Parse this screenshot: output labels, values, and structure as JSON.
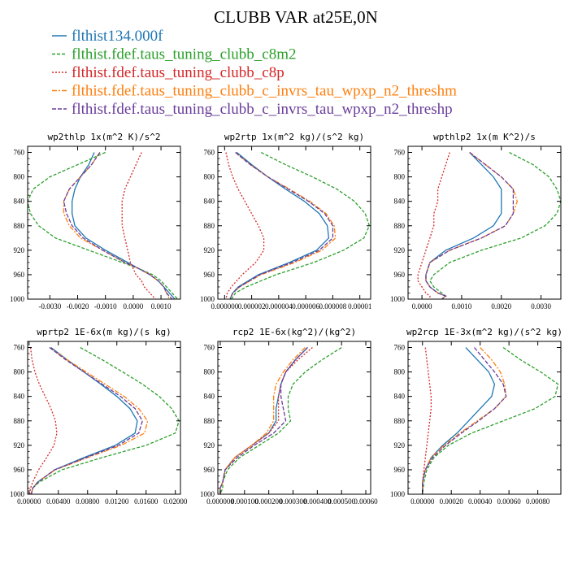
{
  "figure": {
    "title": "CLUBB VAR at25E,0N"
  },
  "colors": {
    "flthist134.000f": "#1f77b4",
    "c8m2": "#2ca02c",
    "c8p": "#d62728",
    "threshm": "#ff7f0e",
    "threshp": "#6a3d9a"
  },
  "legend": [
    {
      "label": "flthist134.000f",
      "color": "#1f77b4",
      "dash": ""
    },
    {
      "label": "flthist.fdef.taus_tuning_clubb_c8m2",
      "color": "#2ca02c",
      "dash": "4,2"
    },
    {
      "label": "flthist.fdef.taus_tuning_clubb_c8p",
      "color": "#d62728",
      "dash": "2,2"
    },
    {
      "label": "flthist.fdef.taus_tuning_clubb_c_invrs_tau_wpxp_n2_threshm",
      "color": "#ff7f0e",
      "dash": "6,2,2,2"
    },
    {
      "label": "flthist.fdef.taus_tuning_clubb_c_invrs_tau_wpxp_n2_threshp",
      "color": "#6a3d9a",
      "dash": "5,2"
    }
  ],
  "chart_data": [
    {
      "type": "line",
      "title": "wp2thlp  1x(m^2 K)/s^2",
      "xlim": [
        -0.0038,
        0.0017
      ],
      "ylim": [
        1000,
        750
      ],
      "xticks": [
        "-0.0030",
        "-0.0020",
        "-0.0010",
        "0.0000",
        "0.0010"
      ],
      "xtick_values": [
        -0.003,
        -0.002,
        -0.001,
        0.0,
        0.001
      ],
      "yticks": [
        "760",
        "800",
        "840",
        "880",
        "920",
        "960",
        "1000"
      ],
      "ytick_values": [
        760,
        800,
        840,
        880,
        920,
        960,
        1000
      ],
      "y": [
        760,
        780,
        800,
        820,
        840,
        860,
        880,
        900,
        920,
        940,
        950,
        960,
        970,
        980,
        990,
        1000
      ],
      "series": [
        {
          "key": "flthist134.000f",
          "x": [
            -0.0014,
            -0.0016,
            -0.0019,
            -0.0021,
            -0.0022,
            -0.0022,
            -0.0021,
            -0.0017,
            -0.001,
            -0.0002,
            0.0002,
            0.0006,
            0.0009,
            0.0011,
            0.0013,
            0.0015
          ]
        },
        {
          "key": "c8m2",
          "x": [
            -0.001,
            -0.002,
            -0.003,
            -0.0036,
            -0.0038,
            -0.0037,
            -0.0034,
            -0.0028,
            -0.0016,
            -0.0004,
            0.0002,
            0.0007,
            0.001,
            0.0012,
            0.0014,
            0.0016
          ]
        },
        {
          "key": "c8p",
          "x": [
            0.0003,
            0.0001,
            -0.0001,
            -0.0003,
            -0.0004,
            -0.0004,
            -0.0004,
            -0.0003,
            -0.0002,
            -0.0001,
            0.0,
            0.0001,
            0.0003,
            0.0004,
            0.0006,
            0.0008
          ]
        },
        {
          "key": "threshm",
          "x": [
            -0.0012,
            -0.0015,
            -0.0019,
            -0.0023,
            -0.0025,
            -0.0025,
            -0.0023,
            -0.0019,
            -0.0011,
            -0.0003,
            0.0002,
            0.0006,
            0.0009,
            0.0011,
            0.0012,
            0.0013
          ]
        },
        {
          "key": "threshp",
          "x": [
            -0.0012,
            -0.0015,
            -0.0019,
            -0.0023,
            -0.0025,
            -0.0024,
            -0.0022,
            -0.0018,
            -0.0011,
            -0.0003,
            0.0002,
            0.0006,
            0.0009,
            0.0011,
            0.0012,
            0.0014
          ]
        }
      ]
    },
    {
      "type": "line",
      "title": "wp2rtp  1x(m^2 kg)/(s^2 kg)",
      "xlim": [
        -5e-07,
        1.08e-05
      ],
      "ylim": [
        1000,
        750
      ],
      "xticks": [
        "0.000000",
        "0.000002",
        "0.000004",
        "0.000006",
        "0.000008",
        "0.00001"
      ],
      "xtick_values": [
        0.0,
        2e-06,
        4e-06,
        6e-06,
        8e-06,
        1e-05
      ],
      "yticks": [
        "760",
        "800",
        "840",
        "880",
        "920",
        "960",
        "1000"
      ],
      "ytick_values": [
        760,
        800,
        840,
        880,
        920,
        960,
        1000
      ],
      "y": [
        760,
        780,
        800,
        820,
        840,
        860,
        880,
        900,
        920,
        940,
        960,
        980,
        990,
        1000
      ],
      "series": [
        {
          "key": "flthist134.000f",
          "x": [
            9e-07,
            2e-06,
            3.2e-06,
            4.5e-06,
            5.9e-06,
            7e-06,
            7.6e-06,
            7.7e-06,
            6.8e-06,
            4.8e-06,
            2.5e-06,
            1e-06,
            6e-07,
            4e-07
          ]
        },
        {
          "key": "c8m2",
          "x": [
            2.7e-06,
            4.5e-06,
            6.5e-06,
            8.3e-06,
            9.6e-06,
            1.04e-05,
            1.07e-05,
            1.03e-05,
            8.8e-06,
            6.6e-06,
            3.8e-06,
            1.6e-06,
            8e-07,
            5e-07
          ]
        },
        {
          "key": "c8p",
          "x": [
            1e-07,
            3e-07,
            6e-07,
            1e-06,
            1.5e-06,
            2e-06,
            2.5e-06,
            2.9e-06,
            2.9e-06,
            2.3e-06,
            1.3e-06,
            5e-07,
            2e-07,
            1e-07
          ]
        },
        {
          "key": "threshm",
          "x": [
            8e-07,
            1.9e-06,
            3.2e-06,
            4.8e-06,
            6.3e-06,
            7.5e-06,
            8.1e-06,
            8.2e-06,
            7.2e-06,
            5.2e-06,
            2.7e-06,
            1.1e-06,
            6e-07,
            4e-07
          ]
        },
        {
          "key": "threshp",
          "x": [
            8e-07,
            1.9e-06,
            3.2e-06,
            4.7e-06,
            6.2e-06,
            7.4e-06,
            8e-06,
            8e-06,
            7e-06,
            5e-06,
            2.6e-06,
            1.1e-06,
            6e-07,
            4e-07
          ]
        }
      ]
    },
    {
      "type": "line",
      "title": "wpthlp2  1x(m K^2)/s",
      "xlim": [
        -0.00035,
        0.0035
      ],
      "ylim": [
        1000,
        750
      ],
      "xticks": [
        "0.0000",
        "0.0010",
        "0.0020",
        "0.0030"
      ],
      "xtick_values": [
        0.0,
        0.001,
        0.002,
        0.003
      ],
      "yticks": [
        "760",
        "800",
        "840",
        "880",
        "920",
        "960",
        "1000"
      ],
      "ytick_values": [
        760,
        800,
        840,
        880,
        920,
        960,
        1000
      ],
      "y": [
        760,
        780,
        800,
        820,
        840,
        860,
        880,
        900,
        920,
        940,
        960,
        970,
        980,
        990,
        995,
        1000
      ],
      "series": [
        {
          "key": "flthist134.000f",
          "x": [
            0.0012,
            0.0015,
            0.0018,
            0.002,
            0.002,
            0.002,
            0.0018,
            0.0013,
            0.0006,
            0.0002,
            0.0001,
            0.0001,
            0.0002,
            0.0004,
            0.0006,
            0.0005
          ]
        },
        {
          "key": "c8m2",
          "x": [
            0.0022,
            0.0028,
            0.0032,
            0.0034,
            0.0035,
            0.0034,
            0.0031,
            0.0025,
            0.0015,
            0.0007,
            0.0003,
            0.0002,
            0.0003,
            0.0005,
            0.0006,
            0.0005
          ]
        },
        {
          "key": "c8p",
          "x": [
            0.0007,
            0.0006,
            0.0005,
            0.0004,
            0.0004,
            0.0003,
            0.0003,
            0.0002,
            0.0001,
            0.0,
            -0.0001,
            -0.0001,
            0.0,
            0.0001,
            0.0002,
            0.0002
          ]
        },
        {
          "key": "threshm",
          "x": [
            0.0012,
            0.0016,
            0.002,
            0.0023,
            0.0024,
            0.0023,
            0.0021,
            0.0015,
            0.0007,
            0.0002,
            0.0001,
            0.0001,
            0.0002,
            0.0004,
            0.0006,
            0.0005
          ]
        },
        {
          "key": "threshp",
          "x": [
            0.0012,
            0.0016,
            0.002,
            0.0023,
            0.0023,
            0.0023,
            0.0021,
            0.0015,
            0.0007,
            0.0002,
            0.0001,
            0.0001,
            0.0002,
            0.0004,
            0.0006,
            0.0005
          ]
        }
      ]
    },
    {
      "type": "line",
      "title": "wprtp2  1E-6x(m kg)/(s kg)",
      "xlim": [
        -0.0002,
        0.0207
      ],
      "ylim": [
        1000,
        750
      ],
      "xticks": [
        "0.00000",
        "0.00400",
        "0.00800",
        "0.01200",
        "0.01600",
        "0.02000"
      ],
      "xtick_values": [
        0.0,
        0.004,
        0.008,
        0.012,
        0.016,
        0.02
      ],
      "yticks": [
        "760",
        "800",
        "840",
        "880",
        "920",
        "960",
        "1000"
      ],
      "ytick_values": [
        760,
        800,
        840,
        880,
        920,
        960,
        1000
      ],
      "y": [
        760,
        780,
        800,
        820,
        840,
        860,
        880,
        900,
        920,
        940,
        960,
        980,
        990,
        1000
      ],
      "series": [
        {
          "key": "flthist134.000f",
          "x": [
            0.003,
            0.0052,
            0.0075,
            0.0098,
            0.012,
            0.0138,
            0.0148,
            0.0145,
            0.0118,
            0.0075,
            0.0035,
            0.0012,
            0.0005,
            0.0003
          ]
        },
        {
          "key": "c8m2",
          "x": [
            0.007,
            0.01,
            0.0128,
            0.0155,
            0.0178,
            0.0195,
            0.0205,
            0.02,
            0.016,
            0.01,
            0.0045,
            0.0014,
            0.0005,
            0.0003
          ]
        },
        {
          "key": "c8p",
          "x": [
            0.0002,
            0.0004,
            0.0008,
            0.0014,
            0.0022,
            0.003,
            0.0036,
            0.0038,
            0.0034,
            0.0024,
            0.0013,
            0.0005,
            0.0002,
            0.0001
          ]
        },
        {
          "key": "threshm",
          "x": [
            0.0028,
            0.0052,
            0.0078,
            0.0104,
            0.013,
            0.015,
            0.0162,
            0.0158,
            0.0126,
            0.008,
            0.0036,
            0.0012,
            0.0005,
            0.0003
          ]
        },
        {
          "key": "threshp",
          "x": [
            0.0028,
            0.005,
            0.0075,
            0.01,
            0.0125,
            0.0145,
            0.0155,
            0.015,
            0.0122,
            0.0078,
            0.0035,
            0.0012,
            0.0005,
            0.0003
          ]
        }
      ]
    },
    {
      "type": "line",
      "title": "rcp2  1E-6x(kg^2)/(kg^2)",
      "xlim": [
        -1e-05,
        0.00062
      ],
      "ylim": [
        1000,
        750
      ],
      "xticks": [
        "0.000000",
        "0.000100",
        "0.000200",
        "0.000300",
        "0.000400",
        "0.000500",
        "0.00060"
      ],
      "xtick_values": [
        0.0,
        0.0001,
        0.0002,
        0.0003,
        0.0004,
        0.0005,
        0.0006
      ],
      "yticks": [
        "760",
        "800",
        "840",
        "880",
        "920",
        "960",
        "1000"
      ],
      "ytick_values": [
        760,
        800,
        840,
        880,
        920,
        960,
        1000
      ],
      "y": [
        760,
        780,
        800,
        820,
        840,
        860,
        880,
        900,
        920,
        940,
        960,
        980,
        990,
        1000
      ],
      "series": [
        {
          "key": "flthist134.000f",
          "x": [
            0.00036,
            0.00031,
            0.00027,
            0.00025,
            0.00024,
            0.00023,
            0.00023,
            0.0002,
            0.00013,
            6e-05,
            2e-05,
            1e-05,
            0.0,
            0.0
          ]
        },
        {
          "key": "c8m2",
          "x": [
            0.0005,
            0.00042,
            0.00035,
            0.0003,
            0.00028,
            0.00028,
            0.00029,
            0.00024,
            0.00016,
            8e-05,
            3e-05,
            1e-05,
            1e-05,
            0.0
          ]
        },
        {
          "key": "c8p",
          "x": [
            0.00038,
            0.00032,
            0.00027,
            0.00025,
            0.00024,
            0.00024,
            0.00024,
            0.0002,
            0.00013,
            6e-05,
            2e-05,
            1e-05,
            0.0,
            0.0
          ]
        },
        {
          "key": "threshm",
          "x": [
            0.00035,
            0.0003,
            0.00026,
            0.00023,
            0.00022,
            0.00022,
            0.00022,
            0.00019,
            0.00013,
            6e-05,
            2e-05,
            1e-05,
            0.0,
            0.0
          ]
        },
        {
          "key": "threshp",
          "x": [
            0.00036,
            0.00031,
            0.00027,
            0.00025,
            0.00025,
            0.00026,
            0.00027,
            0.00022,
            0.00014,
            7e-05,
            2e-05,
            1e-05,
            0.0,
            0.0
          ]
        }
      ]
    },
    {
      "type": "line",
      "title": "wp2rcp  1E-3x(m^2 kg)/(s^2 kg)",
      "xlim": [
        -0.0001,
        0.00096
      ],
      "ylim": [
        1000,
        750
      ],
      "xticks": [
        "0.00000",
        "0.00020",
        "0.00040",
        "0.00060",
        "0.00080"
      ],
      "xtick_values": [
        0.0,
        0.0002,
        0.0004,
        0.0006,
        0.0008
      ],
      "yticks": [
        "760",
        "800",
        "840",
        "880",
        "920",
        "960",
        "1000"
      ],
      "ytick_values": [
        760,
        800,
        840,
        880,
        920,
        960,
        1000
      ],
      "y": [
        760,
        780,
        800,
        820,
        840,
        860,
        880,
        900,
        920,
        940,
        960,
        980,
        1000
      ],
      "series": [
        {
          "key": "flthist134.000f",
          "x": [
            0.0003,
            0.00038,
            0.00046,
            0.0005,
            0.00048,
            0.0004,
            0.00032,
            0.00024,
            0.00014,
            6e-05,
            2e-05,
            0.0,
            0.0
          ]
        },
        {
          "key": "c8m2",
          "x": [
            0.00056,
            0.00068,
            0.00082,
            0.00094,
            0.00092,
            0.00078,
            0.00056,
            0.00034,
            0.00018,
            8e-05,
            3e-05,
            1e-05,
            0.0
          ]
        },
        {
          "key": "c8p",
          "x": [
            2e-05,
            3e-05,
            4e-05,
            5e-05,
            6e-05,
            6e-05,
            5e-05,
            4e-05,
            3e-05,
            2e-05,
            1e-05,
            0.0,
            0.0
          ]
        },
        {
          "key": "threshm",
          "x": [
            0.0004,
            0.00048,
            0.00054,
            0.00057,
            0.00058,
            0.0005,
            0.00038,
            0.00026,
            0.00015,
            6e-05,
            2e-05,
            0.0,
            0.0
          ]
        },
        {
          "key": "threshp",
          "x": [
            0.00036,
            0.00043,
            0.0005,
            0.00056,
            0.00058,
            0.0005,
            0.00039,
            0.00027,
            0.00016,
            7e-05,
            2e-05,
            0.0,
            0.0
          ]
        }
      ]
    }
  ]
}
